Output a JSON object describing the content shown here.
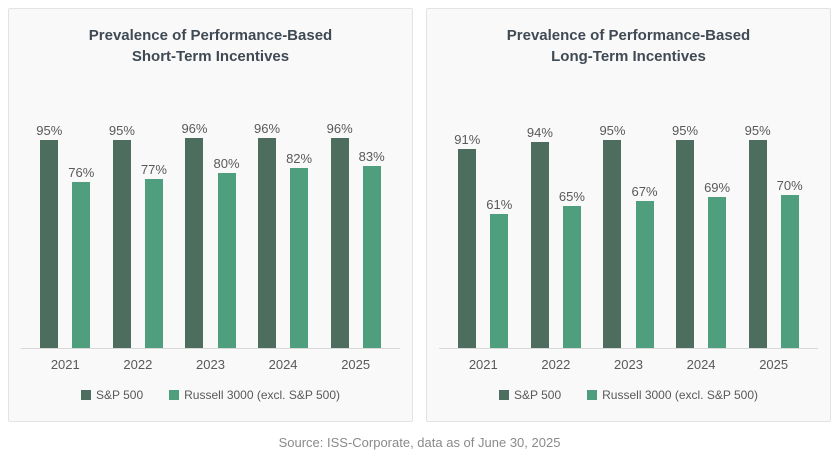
{
  "page": {
    "source_note": "Source: ISS-Corporate, data as of June 30, 2025"
  },
  "colors": {
    "sp500_green": "#4d6e5f",
    "russell_green": "#4f9e7d",
    "title_text": "#3f4a54",
    "label_text": "#595959",
    "axis_line": "#d9d9d9",
    "panel_bg": "#f9f9f9",
    "panel_border": "#e3e3e3"
  },
  "chart_data": [
    {
      "type": "bar",
      "title": "Prevalence of Performance-Based Short-Term Incentives",
      "title_lines": [
        "Prevalence of Performance-Based",
        "Short-Term Incentives"
      ],
      "categories": [
        "2021",
        "2022",
        "2023",
        "2024",
        "2025"
      ],
      "series": [
        {
          "name": "S&P 500",
          "color": "#4d6e5f",
          "values": [
            95,
            95,
            96,
            96,
            96
          ]
        },
        {
          "name": "Russell 3000 (excl. S&P 500)",
          "color": "#4f9e7d",
          "values": [
            76,
            77,
            80,
            82,
            83
          ]
        }
      ],
      "value_suffix": "%",
      "xlabel": "",
      "ylabel": "",
      "ylim": [
        0,
        100
      ],
      "grid": false,
      "legend_position": "bottom"
    },
    {
      "type": "bar",
      "title": "Prevalence of Performance-Based Long-Term Incentives",
      "title_lines": [
        "Prevalence of Performance-Based",
        "Long-Term Incentives"
      ],
      "categories": [
        "2021",
        "2022",
        "2023",
        "2024",
        "2025"
      ],
      "series": [
        {
          "name": "S&P 500",
          "color": "#4d6e5f",
          "values": [
            91,
            94,
            95,
            95,
            95
          ]
        },
        {
          "name": "Russell 3000 (excl. S&P 500)",
          "color": "#4f9e7d",
          "values": [
            61,
            65,
            67,
            69,
            70
          ]
        }
      ],
      "value_suffix": "%",
      "xlabel": "",
      "ylabel": "",
      "ylim": [
        0,
        100
      ],
      "grid": false,
      "legend_position": "bottom"
    }
  ]
}
